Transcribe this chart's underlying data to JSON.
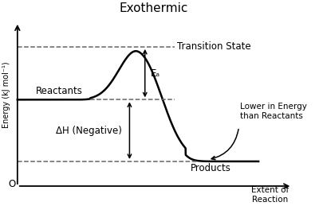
{
  "title": "Exothermic",
  "title_fontsize": 11,
  "xlabel": "Extent of\nReaction",
  "ylabel": "Energy (kJ mol⁻¹)",
  "reactant_energy": 0.52,
  "product_energy": 0.17,
  "transition_energy": 0.82,
  "origin_label": "O",
  "reactants_label": "Reactants",
  "products_label": "Products",
  "transition_label": "Transition State",
  "ea_label": "Eₐ",
  "dh_label": "ΔH (Negative)",
  "lower_label": "Lower in Energy\nthan Reactants",
  "line_color": "#000000",
  "dashed_color": "#666666",
  "background_color": "#ffffff",
  "text_fontsize": 8.5,
  "curve_linewidth": 1.8
}
